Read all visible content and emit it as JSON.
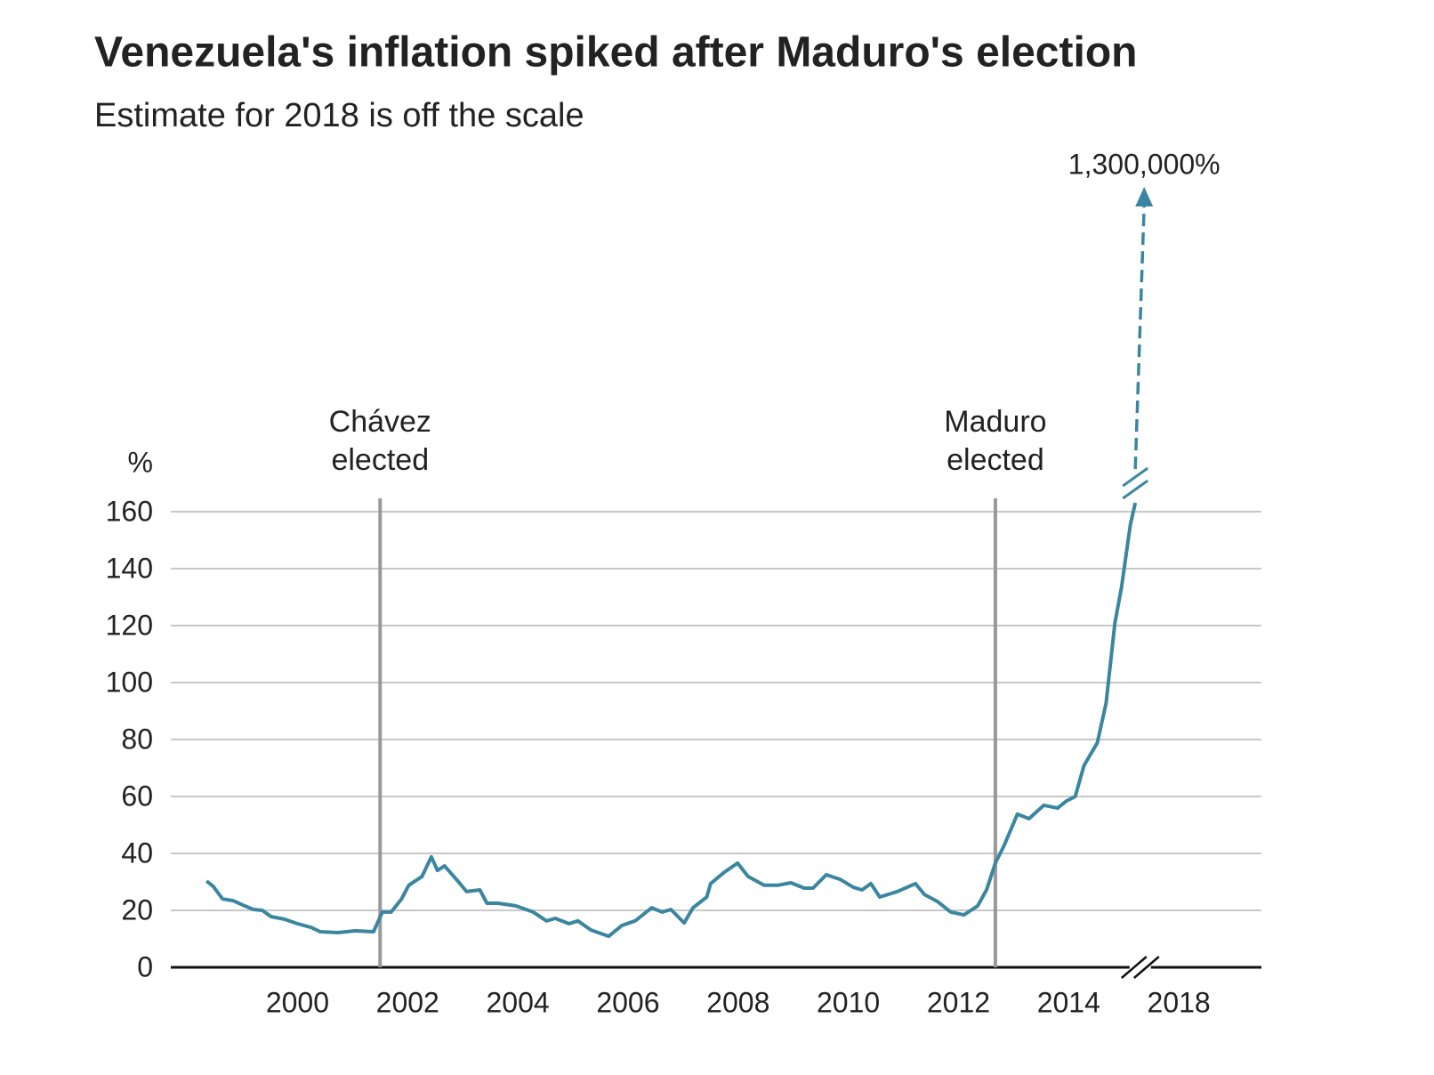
{
  "chart_data": {
    "type": "line",
    "title": "Venezuela's inflation spiked after Maduro's election",
    "subtitle": "Estimate for 2018 is off the scale",
    "ylabel": "%",
    "color": "#3a86a0",
    "x": [
      1998.35,
      1998.47,
      1998.64,
      1998.83,
      1999.04,
      1999.2,
      1999.36,
      1999.52,
      1999.76,
      2000.0,
      2000.25,
      2000.41,
      2000.73,
      2001.05,
      2001.38,
      2001.54,
      2001.7,
      2001.89,
      2002.02,
      2002.26,
      2002.43,
      2002.54,
      2002.67,
      2002.91,
      2003.07,
      2003.31,
      2003.44,
      2003.64,
      2003.96,
      2004.28,
      2004.52,
      2004.68,
      2004.93,
      2005.09,
      2005.33,
      2005.65,
      2005.89,
      2006.13,
      2006.43,
      2006.62,
      2006.78,
      2007.02,
      2007.18,
      2007.43,
      2007.5,
      2007.75,
      2007.99,
      2008.18,
      2008.47,
      2008.72,
      2008.96,
      2009.2,
      2009.36,
      2009.6,
      2009.85,
      2010.09,
      2010.25,
      2010.41,
      2010.57,
      2010.89,
      2011.22,
      2011.38,
      2011.62,
      2011.86,
      2012.1,
      2012.35,
      2012.51,
      2012.67,
      2012.83,
      2013.07,
      2013.28,
      2013.55,
      2013.8,
      2013.96,
      2014.12,
      2014.28,
      2014.52,
      2014.68,
      2014.84,
      2014.96,
      2015.12,
      2015.21
    ],
    "values": [
      30.3,
      28.4,
      24,
      23.4,
      21.6,
      20.3,
      20,
      17.8,
      16.9,
      15.3,
      14,
      12.5,
      12.2,
      12.8,
      12.5,
      19.4,
      19.4,
      24,
      28.8,
      31.9,
      38.8,
      34,
      35.6,
      30.3,
      26.6,
      27.2,
      22.5,
      22.5,
      21.6,
      19.4,
      16.3,
      17.2,
      15.3,
      16.3,
      13.1,
      10.9,
      14.7,
      16.3,
      20.9,
      19.4,
      20.3,
      15.6,
      20.9,
      24.7,
      29.4,
      33.4,
      36.6,
      31.9,
      28.8,
      28.8,
      29.7,
      27.8,
      27.8,
      32.5,
      30.9,
      28.1,
      27.2,
      29.4,
      24.7,
      26.6,
      29.4,
      25.6,
      23.1,
      19.4,
      18.4,
      21.6,
      27.2,
      36.6,
      42.8,
      53.8,
      52.2,
      56.9,
      55.9,
      58.4,
      60,
      70.9,
      78.8,
      92.8,
      120.9,
      133.4,
      155.3,
      163.1
    ],
    "xlim": [
      1997.7,
      2019.5
    ],
    "xbreak": [
      2015.3,
      2017.3
    ],
    "xticks": [
      2000,
      2002,
      2004,
      2006,
      2008,
      2010,
      2012,
      2014,
      2018
    ],
    "ylim": [
      0,
      160
    ],
    "yticks": [
      0,
      20,
      40,
      60,
      80,
      100,
      120,
      140,
      160
    ],
    "grid": true,
    "events": [
      {
        "label": [
          "Chávez",
          "elected"
        ],
        "x": 2001.5
      },
      {
        "label": [
          "Maduro",
          "elected"
        ],
        "x": 2012.67
      }
    ],
    "estimate": {
      "value": 1300000,
      "label": "1,300,000%"
    }
  }
}
